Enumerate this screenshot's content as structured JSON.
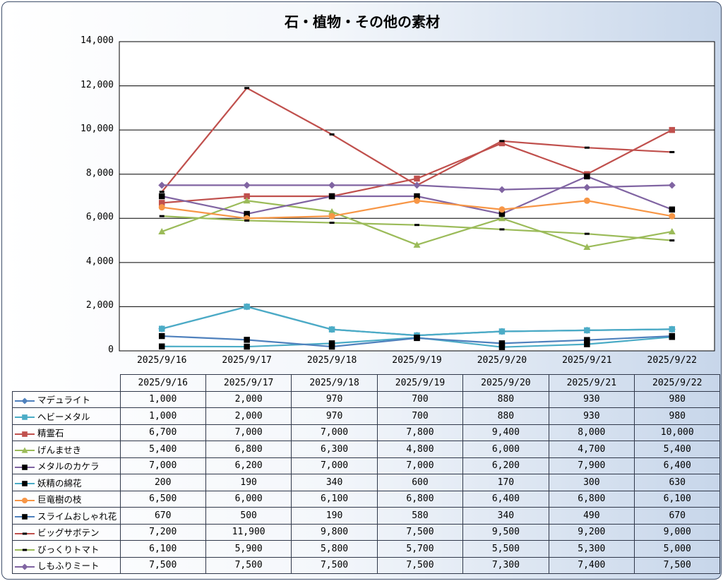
{
  "chart_data": {
    "type": "line",
    "title": "石・植物・その他の素材",
    "ylim": [
      0,
      14000
    ],
    "yticks": [
      "0",
      "2,000",
      "4,000",
      "6,000",
      "8,000",
      "10,000",
      "12,000",
      "14,000"
    ],
    "categories": [
      "2025/9/16",
      "2025/9/17",
      "2025/9/18",
      "2025/9/19",
      "2025/9/20",
      "2025/9/21",
      "2025/9/22"
    ],
    "grid": "horizontal",
    "legend": "data-table",
    "series": [
      {
        "name": "マデュライト",
        "color": "#4f81bd",
        "marker": "diamond",
        "values": [
          1000,
          2000,
          970,
          700,
          880,
          930,
          980
        ],
        "labels": [
          "1,000",
          "2,000",
          "970",
          "700",
          "880",
          "930",
          "980"
        ]
      },
      {
        "name": "ヘビーメタル",
        "color": "#4bacc6",
        "marker": "square",
        "values": [
          1000,
          2000,
          970,
          700,
          880,
          930,
          980
        ],
        "labels": [
          "1,000",
          "2,000",
          "970",
          "700",
          "880",
          "930",
          "980"
        ]
      },
      {
        "name": "精霊石",
        "color": "#c0504d",
        "marker": "square",
        "values": [
          6700,
          7000,
          7000,
          7800,
          9400,
          8000,
          10000
        ],
        "labels": [
          "6,700",
          "7,000",
          "7,000",
          "7,800",
          "9,400",
          "8,000",
          "10,000"
        ]
      },
      {
        "name": "げんませき",
        "color": "#9bbb59",
        "marker": "triangle",
        "values": [
          5400,
          6800,
          6300,
          4800,
          6000,
          4700,
          5400
        ],
        "labels": [
          "5,400",
          "6,800",
          "6,300",
          "4,800",
          "6,000",
          "4,700",
          "5,400"
        ]
      },
      {
        "name": "メタルのカケラ",
        "color": "#8064a2",
        "marker": "blacksquare",
        "values": [
          7000,
          6200,
          7000,
          7000,
          6200,
          7900,
          6400
        ],
        "labels": [
          "7,000",
          "6,200",
          "7,000",
          "7,000",
          "6,200",
          "7,900",
          "6,400"
        ]
      },
      {
        "name": "妖精の綿花",
        "color": "#4bacc6",
        "marker": "blacksquare",
        "values": [
          200,
          190,
          340,
          600,
          170,
          300,
          630
        ],
        "labels": [
          "200",
          "190",
          "340",
          "600",
          "170",
          "300",
          "630"
        ]
      },
      {
        "name": "巨竜樹の枝",
        "color": "#f79646",
        "marker": "circle",
        "values": [
          6500,
          6000,
          6100,
          6800,
          6400,
          6800,
          6100
        ],
        "labels": [
          "6,500",
          "6,000",
          "6,100",
          "6,800",
          "6,400",
          "6,800",
          "6,100"
        ]
      },
      {
        "name": "スライムおしゃれ花",
        "color": "#4f81bd",
        "marker": "blacksquare",
        "values": [
          670,
          500,
          190,
          580,
          340,
          490,
          670
        ],
        "labels": [
          "670",
          "500",
          "190",
          "580",
          "340",
          "490",
          "670"
        ]
      },
      {
        "name": "ビッグサボテン",
        "color": "#c0504d",
        "marker": "dash",
        "values": [
          7200,
          11900,
          9800,
          7500,
          9500,
          9200,
          9000
        ],
        "labels": [
          "7,200",
          "11,900",
          "9,800",
          "7,500",
          "9,500",
          "9,200",
          "9,000"
        ]
      },
      {
        "name": "びっくりトマト",
        "color": "#9bbb59",
        "marker": "dash",
        "values": [
          6100,
          5900,
          5800,
          5700,
          5500,
          5300,
          5000
        ],
        "labels": [
          "6,100",
          "5,900",
          "5,800",
          "5,700",
          "5,500",
          "5,300",
          "5,000"
        ]
      },
      {
        "name": "しもふりミート",
        "color": "#8064a2",
        "marker": "diamond",
        "values": [
          7500,
          7500,
          7500,
          7500,
          7300,
          7400,
          7500
        ],
        "labels": [
          "7,500",
          "7,500",
          "7,500",
          "7,500",
          "7,300",
          "7,400",
          "7,500"
        ]
      }
    ]
  }
}
